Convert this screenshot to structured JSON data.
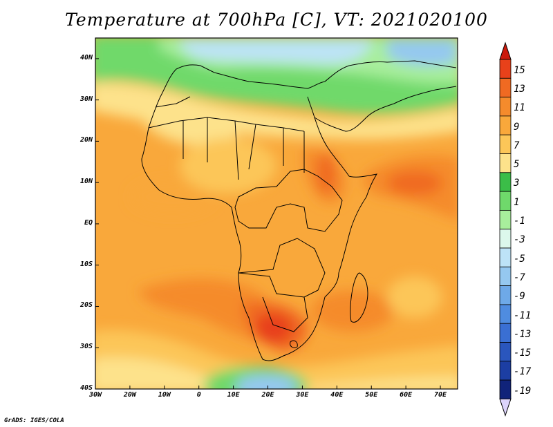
{
  "title": "Temperature at 700hPa [C], VT: 2021020100",
  "credit": "GrADS: IGES/COLA",
  "map": {
    "lon_labels": [
      "30W",
      "20W",
      "10W",
      "0",
      "10E",
      "20E",
      "30E",
      "40E",
      "50E",
      "60E",
      "70E"
    ],
    "lat_labels": [
      "40N",
      "30N",
      "20N",
      "10N",
      "EQ",
      "10S",
      "20S",
      "30S",
      "40S"
    ]
  },
  "colorbar": {
    "labels": [
      "15",
      "13",
      "11",
      "9",
      "7",
      "5",
      "3",
      "1",
      "-1",
      "-3",
      "-5",
      "-7",
      "-9",
      "-11",
      "-13",
      "-15",
      "-17",
      "-19"
    ],
    "colors": [
      "#e8411a",
      "#f06a22",
      "#f58b2c",
      "#f9a83b",
      "#fcc658",
      "#fde28b",
      "#3bbd48",
      "#6fd96b",
      "#a8ee9c",
      "#dcf8ec",
      "#bde3f7",
      "#95c8f0",
      "#6ea9e8",
      "#4f8ce0",
      "#3a6fd3",
      "#2a56bd",
      "#1c3ea3",
      "#10237a"
    ],
    "top_color": "#cc1a0c",
    "bottom_color": "#dcd4fb"
  }
}
